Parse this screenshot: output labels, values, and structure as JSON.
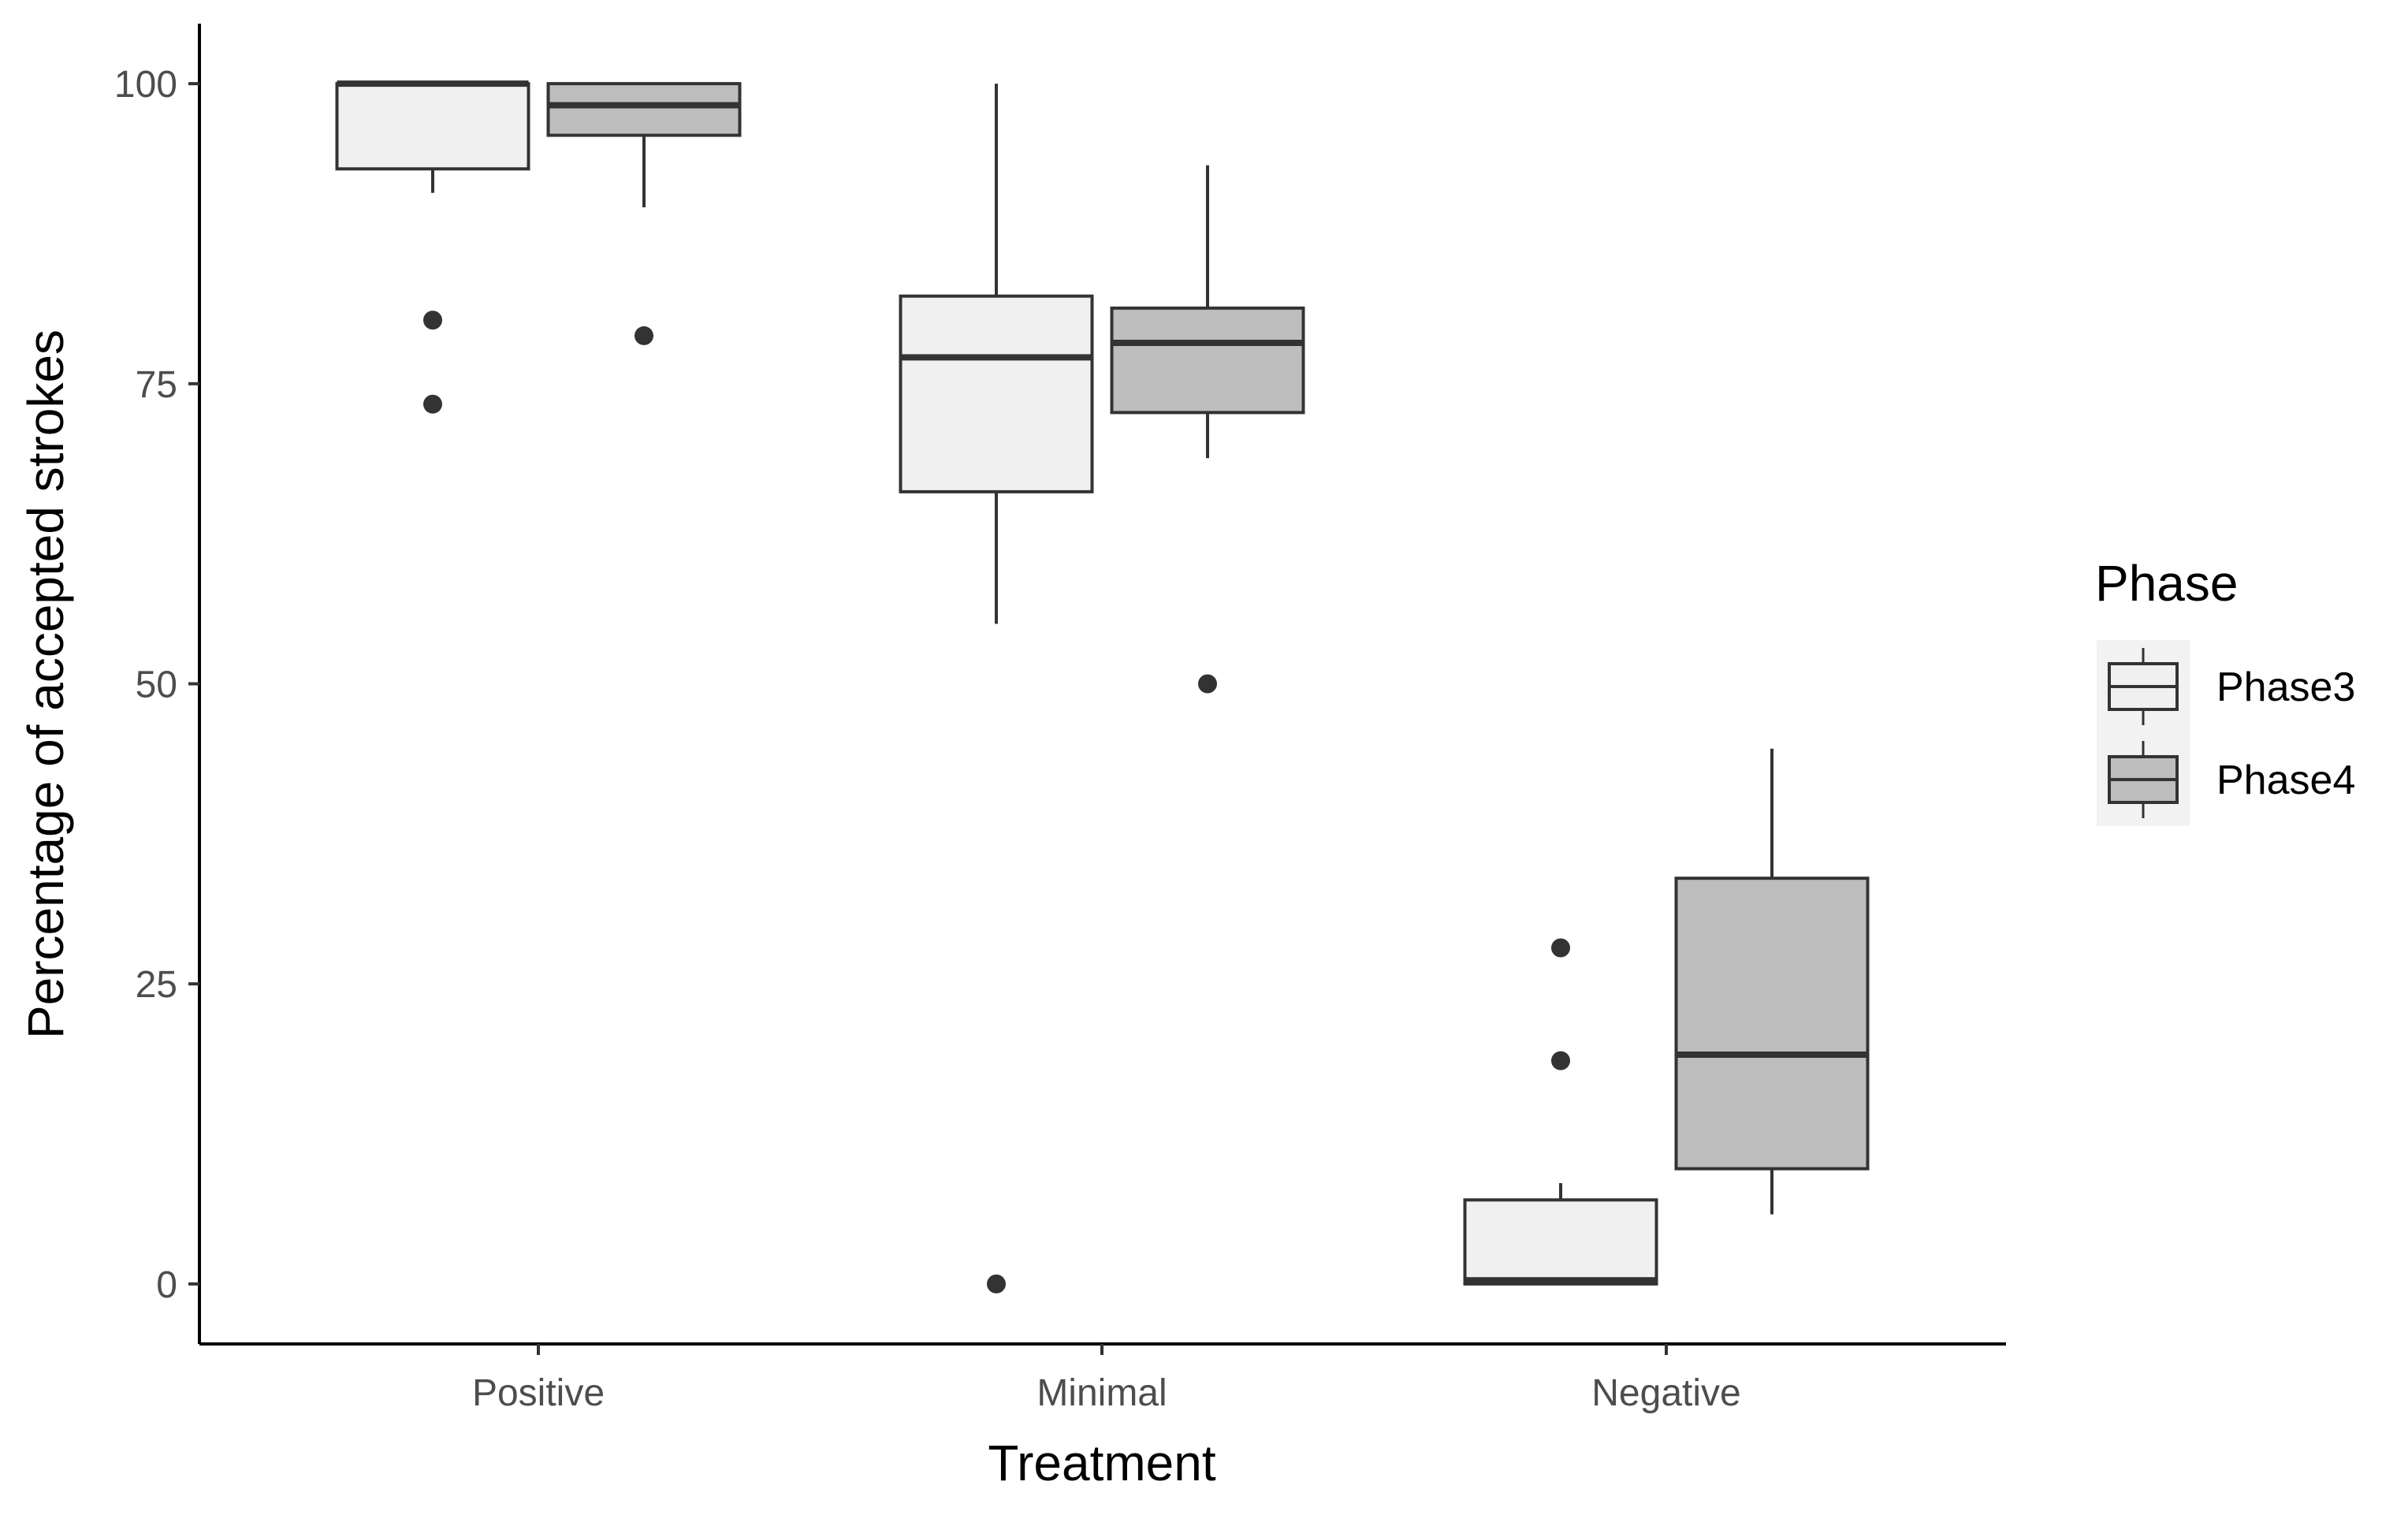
{
  "chart_data": {
    "type": "boxplot",
    "title": "",
    "xlabel": "Treatment",
    "ylabel": "Percentage of accepted strokes",
    "ylim": [
      -5,
      105
    ],
    "yticks": [
      0,
      25,
      50,
      75,
      100
    ],
    "categories": [
      "Positive",
      "Minimal",
      "Negative"
    ],
    "grid": false,
    "legend": {
      "title": "Phase",
      "position": "right",
      "entries": [
        {
          "name": "Phase3",
          "fill": "#f0f0f0"
        },
        {
          "name": "Phase4",
          "fill": "#bdbdbd"
        }
      ]
    },
    "series": [
      {
        "name": "Phase3",
        "fill": "#f0f0f0",
        "boxes": [
          {
            "category": "Positive",
            "whisker_low": 90.9,
            "q1": 92.9,
            "median": 100,
            "q3": 100,
            "whisker_high": 100,
            "outliers": [
              80.3,
              73.3
            ]
          },
          {
            "category": "Minimal",
            "whisker_low": 55,
            "q1": 66,
            "median": 77.2,
            "q3": 82.3,
            "whisker_high": 100,
            "outliers": [
              0
            ]
          },
          {
            "category": "Negative",
            "whisker_low": 0,
            "q1": 0,
            "median": 0.3,
            "q3": 7,
            "whisker_high": 8.4,
            "outliers": [
              28,
              18.6
            ]
          }
        ]
      },
      {
        "name": "Phase4",
        "fill": "#bdbdbd",
        "boxes": [
          {
            "category": "Positive",
            "whisker_low": 89.7,
            "q1": 95.7,
            "median": 98.2,
            "q3": 100,
            "whisker_high": 100,
            "outliers": [
              79
            ]
          },
          {
            "category": "Minimal",
            "whisker_low": 68.8,
            "q1": 72.6,
            "median": 78.4,
            "q3": 81.3,
            "whisker_high": 93.2,
            "outliers": [
              50
            ]
          },
          {
            "category": "Negative",
            "whisker_low": 5.8,
            "q1": 9.6,
            "median": 19.1,
            "q3": 33.8,
            "whisker_high": 44.6,
            "outliers": []
          }
        ]
      }
    ]
  }
}
